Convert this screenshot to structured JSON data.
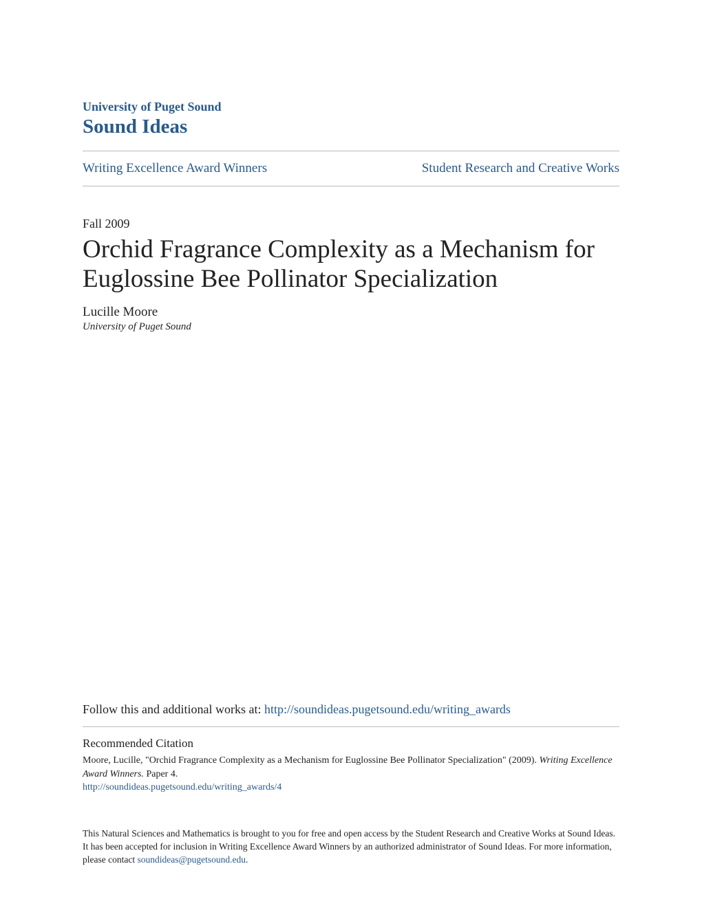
{
  "header": {
    "university": "University of Puget Sound",
    "repository": "Sound Ideas"
  },
  "nav": {
    "left": "Writing Excellence Award Winners",
    "right": "Student Research and Creative Works"
  },
  "date": "Fall 2009",
  "title": "Orchid Fragrance Complexity as a Mechanism for Euglossine Bee Pollinator Specialization",
  "author": "Lucille Moore",
  "affiliation": "University of Puget Sound",
  "follow": {
    "prefix": "Follow this and additional works at: ",
    "url": "http://soundideas.pugetsound.edu/writing_awards"
  },
  "citation": {
    "heading": "Recommended Citation",
    "text_part1": "Moore, Lucille, \"Orchid Fragrance Complexity as a Mechanism for Euglossine Bee Pollinator Specialization\" (2009). ",
    "text_italic": "Writing Excellence Award Winners.",
    "text_part2": " Paper 4.",
    "url": "http://soundideas.pugetsound.edu/writing_awards/4"
  },
  "footer": {
    "text": "This Natural Sciences and Mathematics is brought to you for free and open access by the Student Research and Creative Works at Sound Ideas. It has been accepted for inclusion in Writing Excellence Award Winners by an authorized administrator of Sound Ideas. For more information, please contact ",
    "email": "soundideas@pugetsound.edu",
    "period": "."
  },
  "colors": {
    "link": "#2a5a8a",
    "text": "#222",
    "divider": "#bbb",
    "background": "#ffffff"
  }
}
